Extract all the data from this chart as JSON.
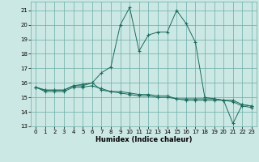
{
  "xlabel": "Humidex (Indice chaleur)",
  "background_color": "#cce8e4",
  "grid_color": "#6aada6",
  "line_color": "#1a6b5e",
  "xlim": [
    -0.5,
    23.5
  ],
  "ylim": [
    13,
    21.6
  ],
  "yticks": [
    13,
    14,
    15,
    16,
    17,
    18,
    19,
    20,
    21
  ],
  "xticks": [
    0,
    1,
    2,
    3,
    4,
    5,
    6,
    7,
    8,
    9,
    10,
    11,
    12,
    13,
    14,
    15,
    16,
    17,
    18,
    19,
    20,
    21,
    22,
    23
  ],
  "series": [
    [
      15.7,
      15.5,
      15.5,
      15.5,
      15.8,
      15.8,
      16.0,
      15.5,
      15.4,
      15.4,
      15.3,
      15.2,
      15.2,
      15.1,
      15.1,
      14.9,
      14.9,
      14.9,
      14.9,
      14.9,
      14.8,
      14.8,
      14.5,
      14.4
    ],
    [
      15.7,
      15.4,
      15.4,
      15.4,
      15.7,
      15.7,
      15.8,
      15.6,
      15.4,
      15.3,
      15.2,
      15.1,
      15.1,
      15.0,
      15.0,
      14.9,
      14.8,
      14.8,
      14.8,
      14.8,
      14.8,
      14.7,
      14.4,
      14.3
    ],
    [
      15.7,
      15.5,
      15.5,
      15.5,
      15.8,
      15.9,
      16.0,
      16.7,
      17.1,
      20.0,
      21.2,
      18.2,
      19.3,
      19.5,
      19.5,
      21.0,
      20.1,
      18.8,
      15.0,
      14.9,
      14.8,
      13.2,
      14.5,
      14.4
    ]
  ]
}
